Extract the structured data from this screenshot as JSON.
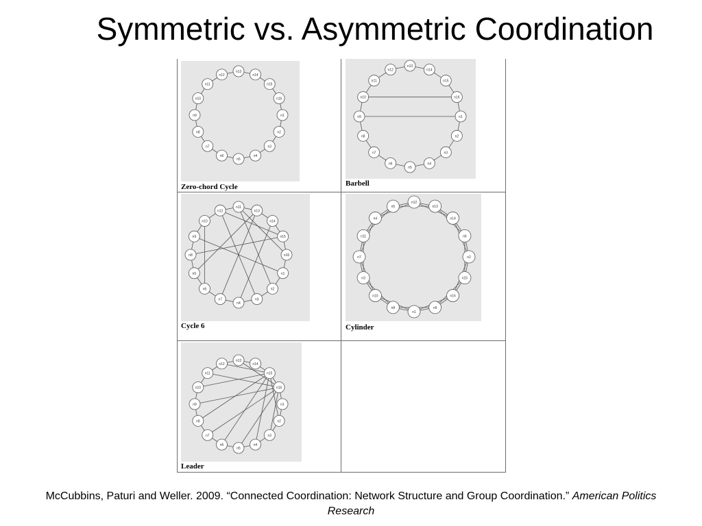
{
  "slide": {
    "title": "Symmetric vs. Asymmetric Coordination"
  },
  "figure": {
    "cells": [
      {
        "id": "zero-chord",
        "caption": "Zero-chord Cycle",
        "nodes": [
          "n13",
          "n14",
          "n15",
          "n16",
          "n1",
          "n2",
          "n3",
          "n4",
          "n5",
          "n6",
          "n7",
          "n8",
          "n9",
          "n10",
          "n11",
          "n12"
        ],
        "chords": []
      },
      {
        "id": "barbell",
        "caption": "Barbell",
        "nodes": [
          "n13",
          "n14",
          "n15",
          "n16",
          "n1",
          "n2",
          "n3",
          "n4",
          "n5",
          "n6",
          "n7",
          "n8",
          "n9",
          "n10",
          "n11",
          "n12"
        ],
        "chords": [
          [
            13,
            3
          ],
          [
            12,
            4
          ]
        ]
      },
      {
        "id": "cycle-6",
        "caption": "Cycle 6",
        "nodes": [
          "n11",
          "n13",
          "n14",
          "n15",
          "n16",
          "n1",
          "n2",
          "n3",
          "n4",
          "n7",
          "n6",
          "n5",
          "n8",
          "n9",
          "n10",
          "n12"
        ],
        "chords": [
          [
            0,
            4
          ],
          [
            0,
            6
          ],
          [
            1,
            9
          ],
          [
            1,
            11
          ],
          [
            2,
            8
          ],
          [
            3,
            12
          ],
          [
            5,
            13
          ],
          [
            7,
            15
          ],
          [
            10,
            14
          ],
          [
            15,
            3
          ]
        ]
      },
      {
        "id": "cylinder",
        "caption": "Cylinder",
        "nodes": [
          "n12",
          "n13",
          "n14",
          "n6",
          "n2",
          "n15",
          "n16",
          "n9",
          "n1",
          "n8",
          "n10",
          "n3",
          "n7",
          "n11",
          "n4",
          "n5"
        ],
        "chords": [
          [
            0,
            2
          ],
          [
            1,
            3
          ],
          [
            2,
            4
          ],
          [
            3,
            5
          ],
          [
            4,
            6
          ],
          [
            5,
            7
          ],
          [
            6,
            8
          ],
          [
            7,
            9
          ],
          [
            8,
            10
          ],
          [
            9,
            11
          ],
          [
            10,
            12
          ],
          [
            11,
            13
          ],
          [
            12,
            14
          ],
          [
            13,
            15
          ],
          [
            14,
            0
          ],
          [
            15,
            1
          ]
        ]
      },
      {
        "id": "leader",
        "caption": "Leader",
        "nodes": [
          "n13",
          "n14",
          "n15",
          "n16",
          "n1",
          "n2",
          "n3",
          "n4",
          "n5",
          "n6",
          "n7",
          "n8",
          "n9",
          "n10",
          "n11",
          "n12"
        ],
        "chords": [
          [
            2,
            5
          ],
          [
            2,
            7
          ],
          [
            2,
            9
          ],
          [
            2,
            11
          ],
          [
            2,
            13
          ],
          [
            2,
            15
          ],
          [
            3,
            6
          ],
          [
            3,
            8
          ],
          [
            3,
            10
          ],
          [
            3,
            12
          ],
          [
            3,
            14
          ],
          [
            3,
            0
          ]
        ]
      }
    ]
  },
  "citation": {
    "text": "McCubbins, Paturi and Weller. 2009. “Connected Coordination: Network Structure and Group Coordination.” ",
    "journal": "American Politics Research"
  }
}
